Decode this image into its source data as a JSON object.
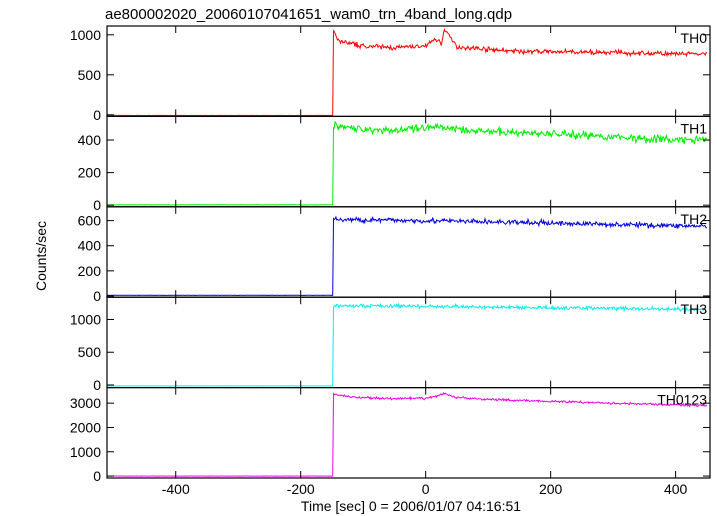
{
  "chart_data": {
    "type": "line",
    "title": "ae800002020_20060107041651_wam0_trn_4band_long.qdp",
    "xlabel": "Time [sec] 0 = 2006/01/07 04:16:51",
    "ylabel": "Counts/sec",
    "xlim": [
      -510,
      455
    ],
    "xticks": [
      -400,
      -200,
      0,
      200,
      400
    ],
    "grid": false,
    "panels": [
      {
        "name": "TH0",
        "color": "#ff0000",
        "ylim": [
          -20,
          1110
        ],
        "yticks": [
          0,
          500,
          1000
        ],
        "pre_level": -8,
        "trigger_time": -148,
        "post_points": [
          [
            -148,
            1050
          ],
          [
            -140,
            930
          ],
          [
            -120,
            890
          ],
          [
            -100,
            860
          ],
          [
            -50,
            840
          ],
          [
            0,
            860
          ],
          [
            15,
            950
          ],
          [
            25,
            900
          ],
          [
            30,
            1060
          ],
          [
            40,
            960
          ],
          [
            50,
            850
          ],
          [
            100,
            820
          ],
          [
            150,
            790
          ],
          [
            200,
            790
          ],
          [
            250,
            780
          ],
          [
            300,
            780
          ],
          [
            350,
            770
          ],
          [
            400,
            760
          ],
          [
            450,
            760
          ]
        ],
        "noise": 28
      },
      {
        "name": "TH1",
        "color": "#00ee00",
        "ylim": [
          -10,
          545
        ],
        "yticks": [
          0,
          200,
          400
        ],
        "pre_level": 2,
        "trigger_time": -148,
        "post_points": [
          [
            -148,
            500
          ],
          [
            -120,
            470
          ],
          [
            -50,
            460
          ],
          [
            0,
            470
          ],
          [
            30,
            480
          ],
          [
            100,
            450
          ],
          [
            200,
            440
          ],
          [
            300,
            420
          ],
          [
            400,
            400
          ],
          [
            450,
            400
          ]
        ],
        "noise": 24
      },
      {
        "name": "TH2",
        "color": "#0000dd",
        "ylim": [
          -10,
          710
        ],
        "yticks": [
          0,
          200,
          400,
          600
        ],
        "pre_level": 5,
        "trigger_time": -148,
        "post_points": [
          [
            -148,
            610
          ],
          [
            -100,
            605
          ],
          [
            0,
            600
          ],
          [
            100,
            590
          ],
          [
            200,
            580
          ],
          [
            300,
            570
          ],
          [
            400,
            560
          ],
          [
            450,
            555
          ]
        ],
        "noise": 20
      },
      {
        "name": "TH3",
        "color": "#00eeee",
        "ylim": [
          -40,
          1340
        ],
        "yticks": [
          0,
          500,
          1000
        ],
        "pre_level": -15,
        "trigger_time": -148,
        "post_points": [
          [
            -148,
            1210
          ],
          [
            -100,
            1210
          ],
          [
            0,
            1200
          ],
          [
            100,
            1190
          ],
          [
            200,
            1180
          ],
          [
            300,
            1170
          ],
          [
            400,
            1160
          ],
          [
            450,
            1150
          ]
        ],
        "noise": 28
      },
      {
        "name": "TH0123",
        "color": "#ee00ee",
        "ylim": [
          -80,
          3640
        ],
        "yticks": [
          0,
          1000,
          2000,
          3000
        ],
        "pre_level": 0,
        "trigger_time": -148,
        "post_points": [
          [
            -148,
            3380
          ],
          [
            -120,
            3250
          ],
          [
            -50,
            3180
          ],
          [
            0,
            3200
          ],
          [
            20,
            3300
          ],
          [
            30,
            3400
          ],
          [
            45,
            3250
          ],
          [
            100,
            3150
          ],
          [
            200,
            3080
          ],
          [
            300,
            3000
          ],
          [
            400,
            2930
          ],
          [
            450,
            2900
          ]
        ],
        "noise": 45
      }
    ]
  }
}
